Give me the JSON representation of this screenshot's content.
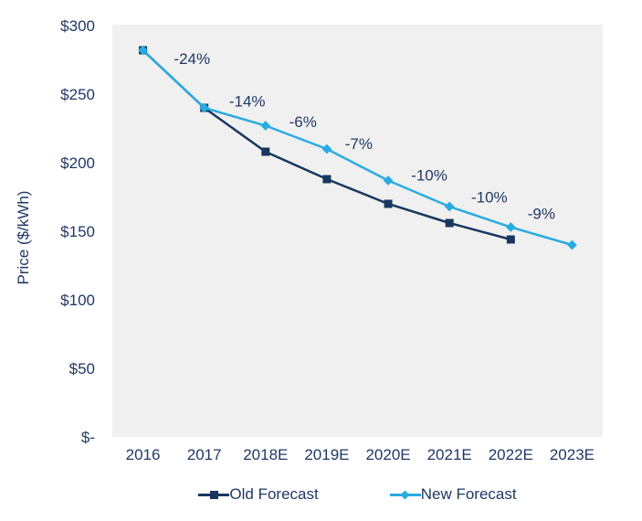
{
  "chart_data": {
    "type": "line",
    "title": "",
    "xlabel": "",
    "ylabel": "Price ($/kWh)",
    "ylim": [
      0,
      300
    ],
    "grid": false,
    "plot_bg": "#f0f0f0",
    "text_color": "#1f3864",
    "y_ticks": [
      {
        "label": "$-",
        "value": 0
      },
      {
        "label": "$50",
        "value": 50
      },
      {
        "label": "$100",
        "value": 100
      },
      {
        "label": "$150",
        "value": 150
      },
      {
        "label": "$200",
        "value": 200
      },
      {
        "label": "$250",
        "value": 250
      },
      {
        "label": "$300",
        "value": 300
      }
    ],
    "categories": [
      "2016",
      "2017",
      "2018E",
      "2019E",
      "2020E",
      "2021E",
      "2022E",
      "2023E"
    ],
    "series": [
      {
        "name": "Old Forecast",
        "color": "#17375e",
        "marker": "square",
        "values": [
          282,
          240,
          208,
          188,
          170,
          156,
          144,
          null
        ]
      },
      {
        "name": "New Forecast",
        "color": "#29abe2",
        "marker": "diamond",
        "values": [
          282,
          240,
          227,
          210,
          187,
          168,
          153,
          140
        ]
      }
    ],
    "annotations": [
      {
        "text": "-24%",
        "x": 0.8,
        "y": 276
      },
      {
        "text": "-14%",
        "x": 1.7,
        "y": 245
      },
      {
        "text": "-6%",
        "x": 2.61,
        "y": 230
      },
      {
        "text": "-7%",
        "x": 3.52,
        "y": 214
      },
      {
        "text": "-10%",
        "x": 4.67,
        "y": 191
      },
      {
        "text": "-10%",
        "x": 5.65,
        "y": 175
      },
      {
        "text": "-9%",
        "x": 6.5,
        "y": 163
      }
    ],
    "legend": {
      "position": "bottom",
      "entries": [
        "Old Forecast",
        "New Forecast"
      ]
    }
  }
}
